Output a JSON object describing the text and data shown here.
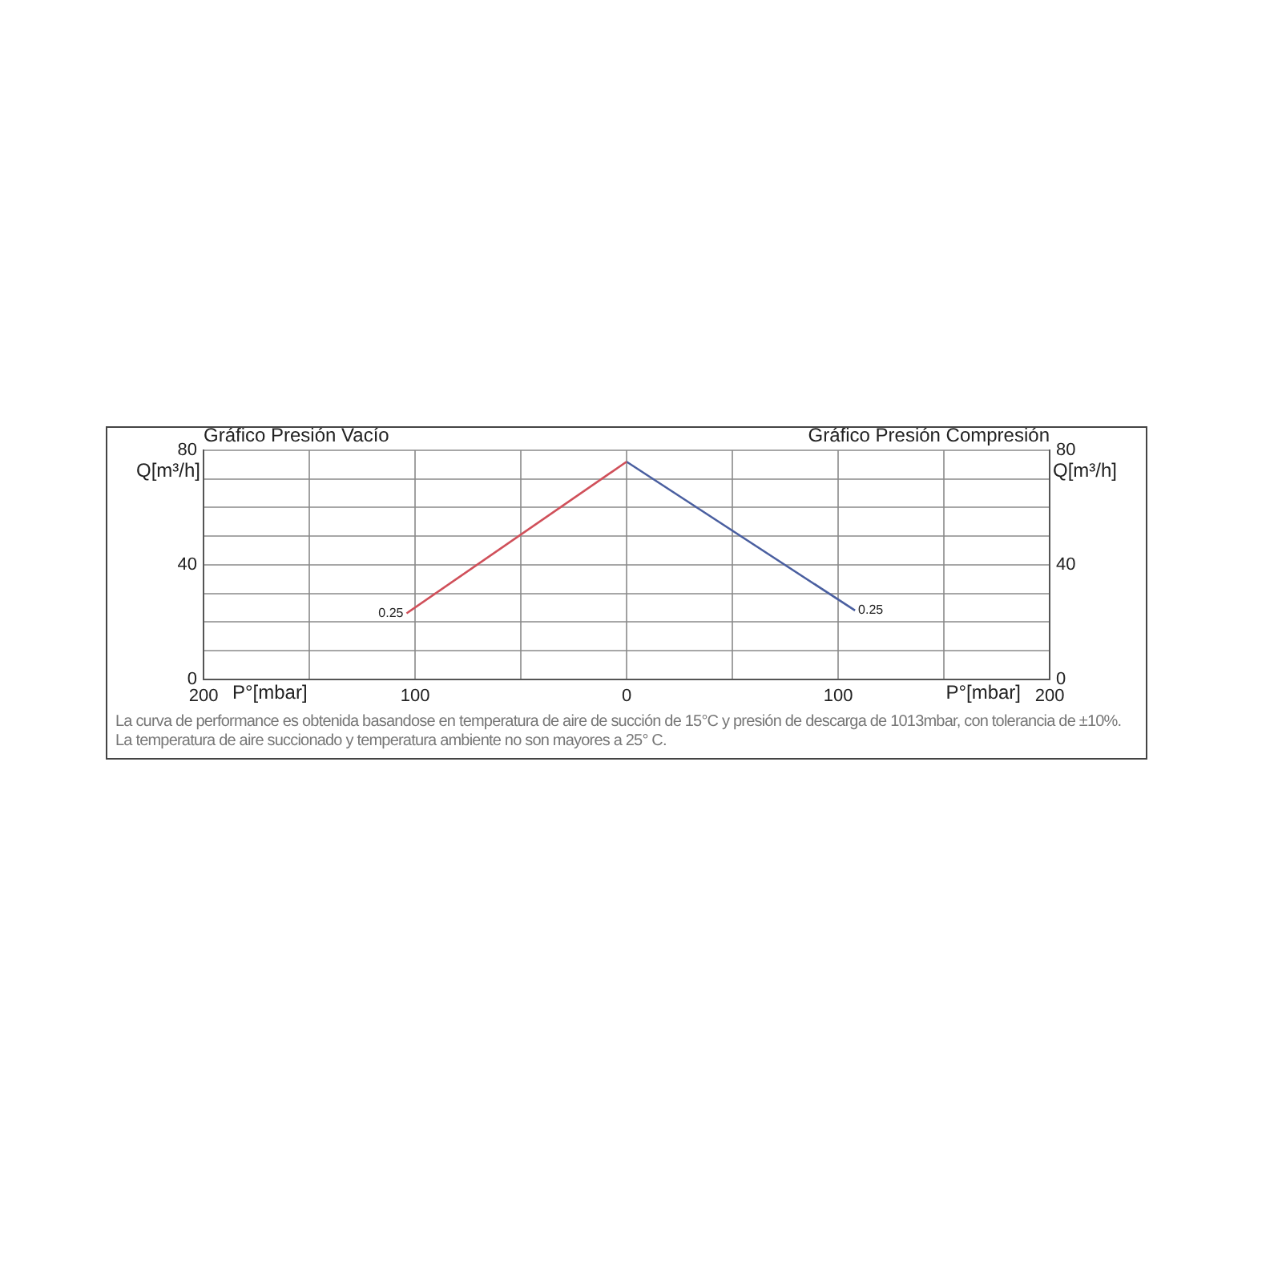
{
  "chart_data": {
    "type": "line",
    "title": "Gráfico Presión Vacío",
    "subtitle": "Gráfico Presión Compresión",
    "xlabel": "P°[mbar]",
    "ylabel": "Q[m³/h]",
    "y2label": "Q[m³/h]",
    "series": [
      {
        "color": "#d0505a",
        "x": [
          -104,
          0
        ],
        "values": [
          23,
          76
        ]
      },
      {
        "color": "#4a5fa0",
        "x": [
          0,
          108
        ],
        "values": [
          76,
          24
        ]
      }
    ],
    "xlim": [
      -200,
      200
    ],
    "xticks": [
      {
        "value": -200,
        "label": "200"
      },
      {
        "value": -150,
        "label": null
      },
      {
        "value": -100,
        "label": "100"
      },
      {
        "value": -50,
        "label": null
      },
      0,
      {
        "value": 50,
        "label": null
      },
      {
        "value": 100,
        "label": "100"
      },
      {
        "value": 150,
        "label": null
      },
      {
        "value": 200,
        "label": "200"
      }
    ],
    "ylim": [
      0,
      80
    ],
    "yticks": [
      0,
      {
        "value": 10,
        "label": null
      },
      {
        "value": 20,
        "label": null
      },
      {
        "value": 30,
        "label": null
      },
      40,
      {
        "value": 50,
        "label": null
      },
      {
        "value": 60,
        "label": null
      },
      {
        "value": 70,
        "label": null
      },
      80
    ],
    "y2lim": [
      0,
      80
    ],
    "y2ticks": [
      0,
      40,
      80
    ],
    "grid": true,
    "legend": false,
    "marker": "none",
    "line_style": "solid",
    "annotations": [
      {
        "text": "0.25",
        "x": -104,
        "y": 23
      },
      {
        "text": "0.25",
        "x": 108,
        "y": 24
      },
      "La curva de performance es obtenida basandose en temperatura de aire de succión de 15°C y presión de descarga de 1013mbar, con tolerancia de ±10%.",
      "La temperatura de aire succionado y temperatura ambiente no son mayores a 25° C."
    ]
  }
}
